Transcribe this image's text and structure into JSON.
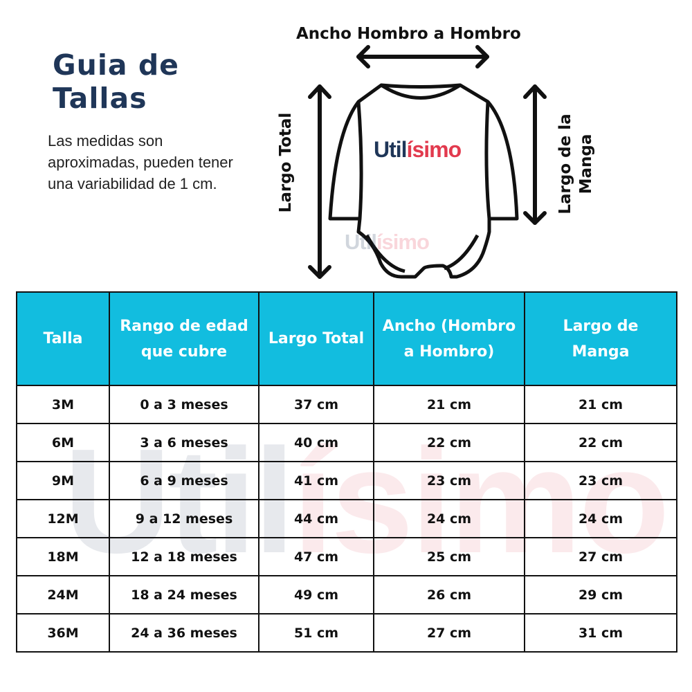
{
  "title_line1": "Guia de",
  "title_line2": "Tallas",
  "note": "Las medidas son aproximadas, pueden tener una variabilidad de 1 cm.",
  "diagram": {
    "width_label": "Ancho Hombro a Hombro",
    "length_label": "Largo Total",
    "sleeve_label_1": "Largo de la",
    "sleeve_label_2": "Manga"
  },
  "brand": {
    "part1": "Util",
    "part2": "ísimo",
    "color_dark": "#1f3658",
    "color_red": "#e23a4e"
  },
  "colors": {
    "header_bg": "#12bddf"
  },
  "table": {
    "headers": [
      "Talla",
      "Rango de edad que cubre",
      "Largo Total",
      "Ancho (Hombro a Hombro)",
      "Largo de Manga"
    ],
    "rows": [
      [
        "3M",
        "0 a 3 meses",
        "37 cm",
        "21 cm",
        "21 cm"
      ],
      [
        "6M",
        "3 a 6 meses",
        "40 cm",
        "22 cm",
        "22 cm"
      ],
      [
        "9M",
        "6 a 9 meses",
        "41 cm",
        "23 cm",
        "23 cm"
      ],
      [
        "12M",
        "9 a 12 meses",
        "44 cm",
        "24 cm",
        "24 cm"
      ],
      [
        "18M",
        "12 a 18 meses",
        "47 cm",
        "25 cm",
        "27 cm"
      ],
      [
        "24M",
        "18 a 24 meses",
        "49 cm",
        "26 cm",
        "29 cm"
      ],
      [
        "36M",
        "24 a 36 meses",
        "51 cm",
        "27 cm",
        "31 cm"
      ]
    ]
  }
}
